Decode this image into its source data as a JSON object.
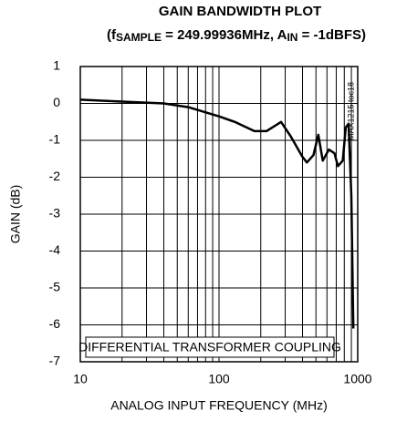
{
  "chart_data": {
    "type": "line",
    "title": "GAIN BANDWIDTH PLOT",
    "subtitle_parts": [
      "(f",
      "SAMPLE",
      " = 249.99936MHz, A",
      "IN",
      " = -1dBFS)"
    ],
    "xlabel": "ANALOG INPUT FREQUENCY (MHz)",
    "ylabel": "GAIN (dB)",
    "annotation": "DIFFERENTIAL TRANSFORMER COUPLING",
    "side_note": "MAX1215 toc18",
    "x": [
      10,
      20,
      40,
      60,
      100,
      130,
      180,
      220,
      280,
      330,
      400,
      430,
      480,
      520,
      560,
      620,
      680,
      720,
      780,
      820,
      860,
      900,
      930
    ],
    "values": [
      0.1,
      0.05,
      0,
      -0.1,
      -0.35,
      -0.5,
      -0.75,
      -0.75,
      -0.5,
      -0.9,
      -1.45,
      -1.6,
      -1.4,
      -0.85,
      -1.55,
      -1.25,
      -1.35,
      -1.7,
      -1.55,
      -0.65,
      -0.55,
      -2.5,
      -6.1
    ],
    "color": "#000000",
    "xscale": "log",
    "xlim": [
      10,
      1000
    ],
    "xticks": [
      10,
      100,
      1000
    ],
    "x_minor_ticks": [
      20,
      30,
      40,
      50,
      60,
      70,
      80,
      90,
      200,
      300,
      400,
      500,
      600,
      700,
      800,
      900
    ],
    "ylim": [
      -7,
      1
    ],
    "yticks": [
      1,
      0,
      -1,
      -2,
      -3,
      -4,
      -5,
      -6,
      -7
    ],
    "grid": true
  }
}
